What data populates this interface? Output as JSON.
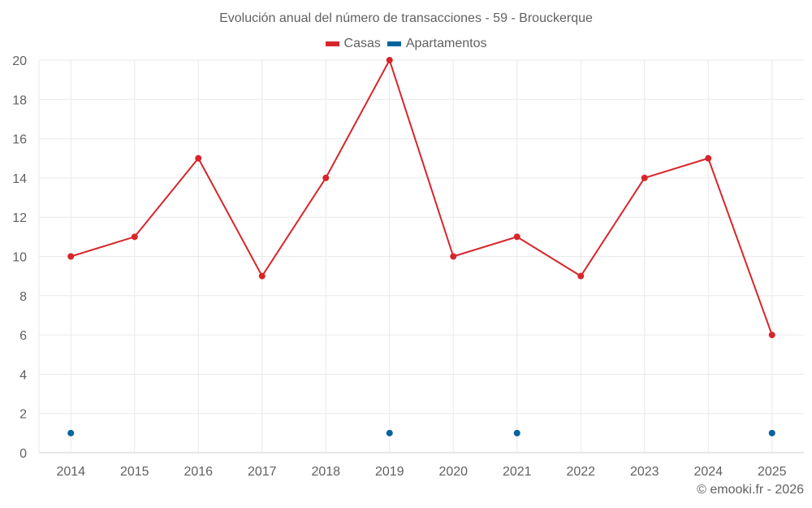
{
  "chart_data": {
    "type": "line",
    "title": "Evolución anual del número de transacciones - 59 - Brouckerque",
    "categories": [
      "2014",
      "2015",
      "2016",
      "2017",
      "2018",
      "2019",
      "2020",
      "2021",
      "2022",
      "2023",
      "2024",
      "2025"
    ],
    "series": [
      {
        "name": "Casas",
        "color": "#d7262b",
        "values": [
          10,
          11,
          15,
          9,
          14,
          20,
          10,
          11,
          9,
          14,
          15,
          6
        ],
        "line": true
      },
      {
        "name": "Apartamentos",
        "color": "#03649e",
        "values": [
          1,
          null,
          null,
          null,
          null,
          1,
          null,
          1,
          null,
          null,
          null,
          1
        ],
        "line": false
      }
    ],
    "xlabel": "",
    "ylabel": "",
    "ylim": [
      0,
      20
    ],
    "yticks": [
      0,
      2,
      4,
      6,
      8,
      10,
      12,
      14,
      16,
      18,
      20
    ],
    "grid": true,
    "legend_position": "top"
  },
  "header": {
    "title": "Evolución anual del número de transacciones - 59 - Brouckerque"
  },
  "legend": {
    "items": [
      {
        "label": "Casas",
        "color": "#d7262b"
      },
      {
        "label": "Apartamentos",
        "color": "#03649e"
      }
    ]
  },
  "footer": {
    "credit": "© emooki.fr - 2026"
  }
}
